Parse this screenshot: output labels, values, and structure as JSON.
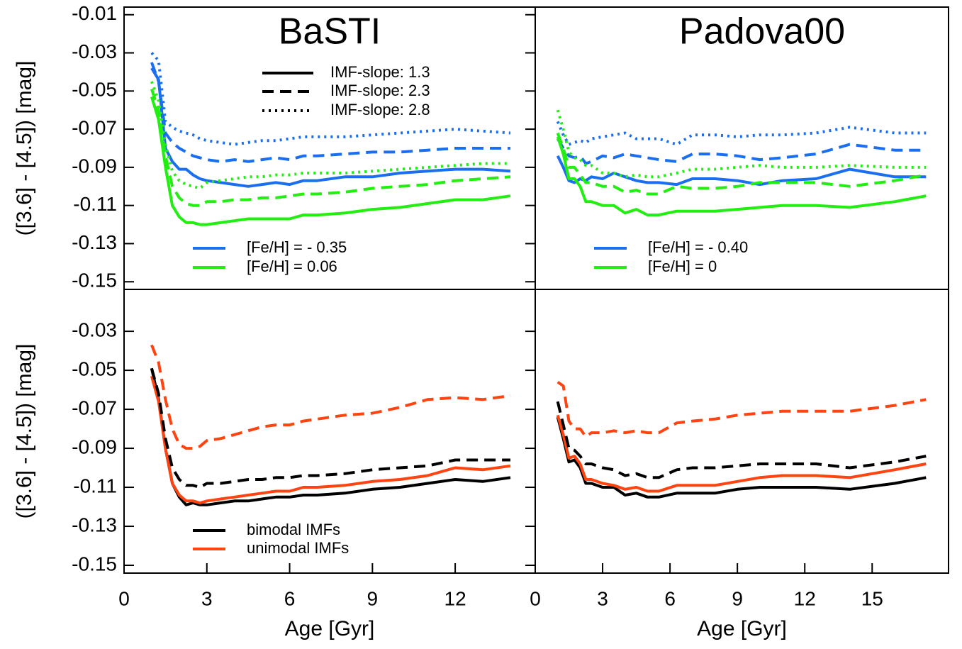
{
  "chart_data": [
    {
      "type": "line",
      "title": "BaSTI",
      "ylabel": "([3.6] - [4.5]) [mag]",
      "xlim": [
        0,
        14.9
      ],
      "ylim": [
        -0.154,
        -0.006
      ],
      "yticks": [
        -0.01,
        -0.03,
        -0.05,
        -0.07,
        -0.09,
        -0.11,
        -0.13,
        -0.15
      ],
      "x": [
        1,
        1.25,
        1.5,
        1.75,
        2,
        2.25,
        2.5,
        2.75,
        3,
        3.5,
        4,
        4.5,
        5,
        5.5,
        6,
        6.5,
        7,
        8,
        9,
        10,
        11,
        12,
        13,
        14
      ],
      "legend": [
        {
          "label": "IMF-slope: 1.3",
          "color": "#000000",
          "dash": "solid"
        },
        {
          "label": "IMF-slope: 2.3",
          "color": "#000000",
          "dash": "dashed"
        },
        {
          "label": "IMF-slope: 2.8",
          "color": "#000000",
          "dash": "dotted"
        },
        {
          "label": "[Fe/H] = - 0.35",
          "color": "#1a6ff0",
          "dash": "solid"
        },
        {
          "label": "[Fe/H] = 0.06",
          "color": "#22ee11",
          "dash": "solid"
        }
      ],
      "series": [
        {
          "color": "#1a6ff0",
          "dash": "solid",
          "values": [
            -0.038,
            -0.044,
            -0.08,
            -0.087,
            -0.091,
            -0.091,
            -0.094,
            -0.096,
            -0.097,
            -0.098,
            -0.099,
            -0.1,
            -0.099,
            -0.098,
            -0.099,
            -0.097,
            -0.097,
            -0.095,
            -0.095,
            -0.093,
            -0.092,
            -0.091,
            -0.091,
            -0.092
          ]
        },
        {
          "color": "#1a6ff0",
          "dash": "dashed",
          "values": [
            -0.035,
            -0.045,
            -0.072,
            -0.077,
            -0.08,
            -0.082,
            -0.084,
            -0.085,
            -0.086,
            -0.087,
            -0.086,
            -0.087,
            -0.086,
            -0.085,
            -0.086,
            -0.084,
            -0.084,
            -0.083,
            -0.082,
            -0.082,
            -0.081,
            -0.08,
            -0.08,
            -0.08
          ]
        },
        {
          "color": "#1a6ff0",
          "dash": "dotted",
          "values": [
            -0.03,
            -0.034,
            -0.066,
            -0.069,
            -0.071,
            -0.072,
            -0.073,
            -0.075,
            -0.076,
            -0.077,
            -0.078,
            -0.077,
            -0.076,
            -0.076,
            -0.075,
            -0.074,
            -0.074,
            -0.074,
            -0.073,
            -0.072,
            -0.071,
            -0.07,
            -0.071,
            -0.072
          ]
        },
        {
          "color": "#22ee11",
          "dash": "solid",
          "values": [
            -0.053,
            -0.065,
            -0.09,
            -0.11,
            -0.116,
            -0.119,
            -0.119,
            -0.12,
            -0.12,
            -0.119,
            -0.118,
            -0.117,
            -0.117,
            -0.117,
            -0.117,
            -0.115,
            -0.115,
            -0.114,
            -0.112,
            -0.111,
            -0.109,
            -0.107,
            -0.107,
            -0.105
          ]
        },
        {
          "color": "#22ee11",
          "dash": "dashed",
          "values": [
            -0.049,
            -0.06,
            -0.084,
            -0.1,
            -0.106,
            -0.109,
            -0.11,
            -0.11,
            -0.108,
            -0.108,
            -0.107,
            -0.107,
            -0.106,
            -0.106,
            -0.105,
            -0.104,
            -0.104,
            -0.103,
            -0.101,
            -0.1,
            -0.099,
            -0.097,
            -0.096,
            -0.095
          ]
        },
        {
          "color": "#22ee11",
          "dash": "dotted",
          "values": [
            -0.045,
            -0.055,
            -0.078,
            -0.092,
            -0.097,
            -0.099,
            -0.1,
            -0.101,
            -0.098,
            -0.097,
            -0.096,
            -0.095,
            -0.095,
            -0.094,
            -0.094,
            -0.093,
            -0.093,
            -0.093,
            -0.092,
            -0.091,
            -0.09,
            -0.089,
            -0.088,
            -0.088
          ]
        }
      ]
    },
    {
      "type": "line",
      "title": "Padova00",
      "xlim": [
        0,
        18.4
      ],
      "ylim": [
        -0.154,
        -0.006
      ],
      "x": [
        1,
        1.25,
        1.5,
        1.75,
        2,
        2.25,
        2.5,
        3,
        3.5,
        4,
        4.5,
        5,
        5.5,
        6.3,
        7,
        8,
        9,
        10,
        11,
        12.5,
        14,
        16,
        17.4
      ],
      "legend": [
        {
          "label": "[Fe/H] = - 0.40",
          "color": "#1a6ff0",
          "dash": "solid"
        },
        {
          "label": "[Fe/H] = 0",
          "color": "#22ee11",
          "dash": "solid"
        }
      ],
      "series": [
        {
          "color": "#1a6ff0",
          "dash": "solid",
          "values": [
            -0.084,
            -0.09,
            -0.097,
            -0.098,
            -0.096,
            -0.097,
            -0.095,
            -0.096,
            -0.093,
            -0.095,
            -0.097,
            -0.098,
            -0.098,
            -0.099,
            -0.096,
            -0.096,
            -0.097,
            -0.099,
            -0.097,
            -0.096,
            -0.091,
            -0.095,
            -0.095
          ]
        },
        {
          "color": "#1a6ff0",
          "dash": "dashed",
          "values": [
            -0.075,
            -0.08,
            -0.084,
            -0.085,
            -0.084,
            -0.088,
            -0.087,
            -0.084,
            -0.085,
            -0.083,
            -0.084,
            -0.085,
            -0.086,
            -0.087,
            -0.083,
            -0.083,
            -0.084,
            -0.086,
            -0.085,
            -0.083,
            -0.078,
            -0.081,
            -0.081
          ]
        },
        {
          "color": "#1a6ff0",
          "dash": "dotted",
          "values": [
            -0.066,
            -0.073,
            -0.078,
            -0.077,
            -0.076,
            -0.077,
            -0.075,
            -0.074,
            -0.073,
            -0.072,
            -0.075,
            -0.075,
            -0.075,
            -0.078,
            -0.073,
            -0.073,
            -0.074,
            -0.073,
            -0.073,
            -0.072,
            -0.069,
            -0.072,
            -0.072
          ]
        },
        {
          "color": "#22ee11",
          "dash": "solid",
          "values": [
            -0.074,
            -0.083,
            -0.096,
            -0.096,
            -0.1,
            -0.108,
            -0.108,
            -0.11,
            -0.11,
            -0.114,
            -0.112,
            -0.115,
            -0.115,
            -0.113,
            -0.113,
            -0.113,
            -0.112,
            -0.111,
            -0.11,
            -0.11,
            -0.111,
            -0.108,
            -0.105
          ]
        },
        {
          "color": "#22ee11",
          "dash": "dashed",
          "values": [
            -0.072,
            -0.08,
            -0.09,
            -0.09,
            -0.094,
            -0.098,
            -0.098,
            -0.1,
            -0.1,
            -0.103,
            -0.102,
            -0.104,
            -0.104,
            -0.1,
            -0.101,
            -0.101,
            -0.1,
            -0.098,
            -0.098,
            -0.098,
            -0.1,
            -0.097,
            -0.094
          ]
        },
        {
          "color": "#22ee11",
          "dash": "dotted",
          "values": [
            -0.06,
            -0.07,
            -0.082,
            -0.085,
            -0.086,
            -0.089,
            -0.089,
            -0.093,
            -0.093,
            -0.095,
            -0.094,
            -0.095,
            -0.095,
            -0.093,
            -0.091,
            -0.091,
            -0.09,
            -0.089,
            -0.09,
            -0.09,
            -0.089,
            -0.09,
            -0.09
          ]
        }
      ]
    },
    {
      "type": "line",
      "ylabel": "([3.6] - [4.5]) [mag]",
      "xlabel": "Age [Gyr]",
      "xlim": [
        0,
        14.9
      ],
      "ylim": [
        -0.154,
        -0.0085
      ],
      "xticks": [
        0,
        3,
        6,
        9,
        12
      ],
      "yticks": [
        -0.03,
        -0.05,
        -0.07,
        -0.09,
        -0.11,
        -0.13,
        -0.15
      ],
      "x": [
        1,
        1.25,
        1.5,
        1.75,
        2,
        2.25,
        2.5,
        2.75,
        3,
        3.5,
        4,
        4.5,
        5,
        5.5,
        6,
        6.5,
        7,
        8,
        9,
        10,
        11,
        12,
        13,
        14
      ],
      "legend": [
        {
          "label": "bimodal IMFs",
          "color": "#000000",
          "dash": "solid"
        },
        {
          "label": "unimodal IMFs",
          "color": "#ff4411",
          "dash": "solid"
        }
      ],
      "series": [
        {
          "color": "#000000",
          "dash": "solid",
          "values": [
            -0.049,
            -0.065,
            -0.09,
            -0.108,
            -0.115,
            -0.119,
            -0.118,
            -0.119,
            -0.119,
            -0.118,
            -0.117,
            -0.117,
            -0.116,
            -0.115,
            -0.115,
            -0.114,
            -0.114,
            -0.113,
            -0.111,
            -0.11,
            -0.108,
            -0.106,
            -0.107,
            -0.105
          ]
        },
        {
          "color": "#ff4411",
          "dash": "solid",
          "values": [
            -0.053,
            -0.066,
            -0.09,
            -0.108,
            -0.114,
            -0.117,
            -0.117,
            -0.118,
            -0.117,
            -0.116,
            -0.115,
            -0.114,
            -0.113,
            -0.112,
            -0.112,
            -0.11,
            -0.11,
            -0.109,
            -0.107,
            -0.106,
            -0.104,
            -0.1,
            -0.101,
            -0.099
          ]
        },
        {
          "color": "#000000",
          "dash": "dashed",
          "values": [
            -0.049,
            -0.062,
            -0.085,
            -0.1,
            -0.106,
            -0.109,
            -0.109,
            -0.11,
            -0.108,
            -0.108,
            -0.107,
            -0.106,
            -0.106,
            -0.105,
            -0.105,
            -0.104,
            -0.104,
            -0.103,
            -0.101,
            -0.1,
            -0.099,
            -0.096,
            -0.096,
            -0.096
          ]
        },
        {
          "color": "#ff4411",
          "dash": "dashed",
          "values": [
            -0.037,
            -0.046,
            -0.065,
            -0.08,
            -0.088,
            -0.09,
            -0.09,
            -0.089,
            -0.086,
            -0.085,
            -0.083,
            -0.081,
            -0.079,
            -0.078,
            -0.078,
            -0.076,
            -0.075,
            -0.073,
            -0.072,
            -0.069,
            -0.065,
            -0.064,
            -0.065,
            -0.063
          ]
        }
      ]
    },
    {
      "type": "line",
      "xlabel": "Age [Gyr]",
      "xlim": [
        0,
        18.4
      ],
      "ylim": [
        -0.154,
        -0.0085
      ],
      "xticks": [
        0,
        3,
        6,
        9,
        12,
        15
      ],
      "x": [
        1,
        1.25,
        1.5,
        1.75,
        2,
        2.25,
        2.5,
        3,
        3.5,
        4,
        4.5,
        5,
        5.5,
        6.3,
        7,
        8,
        9,
        10,
        11,
        12.5,
        14,
        16,
        17.4
      ],
      "series": [
        {
          "color": "#000000",
          "dash": "solid",
          "values": [
            -0.074,
            -0.085,
            -0.097,
            -0.096,
            -0.1,
            -0.108,
            -0.108,
            -0.11,
            -0.11,
            -0.114,
            -0.113,
            -0.115,
            -0.115,
            -0.113,
            -0.113,
            -0.113,
            -0.111,
            -0.11,
            -0.11,
            -0.11,
            -0.111,
            -0.108,
            -0.105
          ]
        },
        {
          "color": "#ff4411",
          "dash": "solid",
          "values": [
            -0.073,
            -0.083,
            -0.095,
            -0.094,
            -0.098,
            -0.106,
            -0.106,
            -0.108,
            -0.109,
            -0.111,
            -0.11,
            -0.112,
            -0.112,
            -0.109,
            -0.109,
            -0.109,
            -0.107,
            -0.105,
            -0.104,
            -0.104,
            -0.105,
            -0.101,
            -0.098
          ]
        },
        {
          "color": "#000000",
          "dash": "dashed",
          "values": [
            -0.066,
            -0.078,
            -0.09,
            -0.091,
            -0.094,
            -0.098,
            -0.098,
            -0.1,
            -0.101,
            -0.104,
            -0.103,
            -0.105,
            -0.105,
            -0.101,
            -0.1,
            -0.1,
            -0.099,
            -0.098,
            -0.098,
            -0.098,
            -0.1,
            -0.097,
            -0.094
          ]
        },
        {
          "color": "#ff4411",
          "dash": "dashed",
          "values": [
            -0.056,
            -0.058,
            -0.076,
            -0.08,
            -0.08,
            -0.084,
            -0.082,
            -0.082,
            -0.081,
            -0.082,
            -0.081,
            -0.082,
            -0.082,
            -0.077,
            -0.076,
            -0.075,
            -0.073,
            -0.072,
            -0.071,
            -0.071,
            -0.071,
            -0.068,
            -0.065
          ]
        }
      ]
    }
  ]
}
